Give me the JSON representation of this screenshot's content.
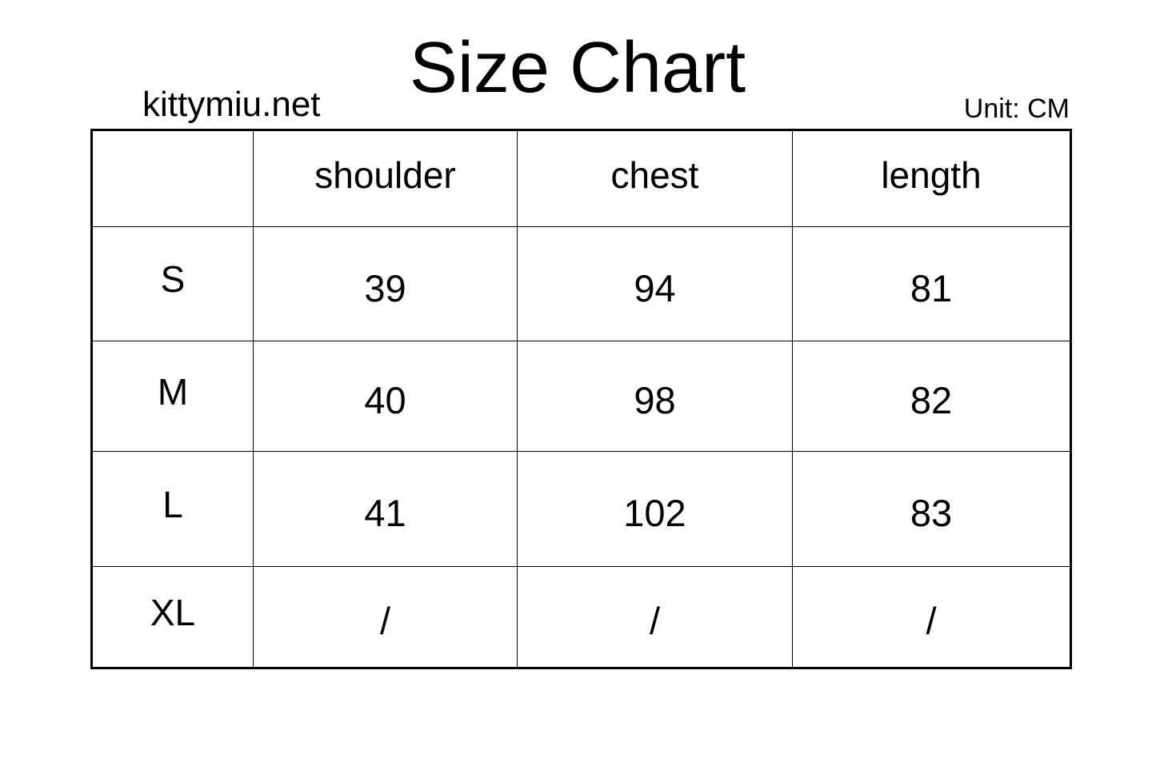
{
  "title": "Size Chart",
  "brand": "kittymiu.net",
  "unit": "Unit: CM",
  "table": {
    "headers": [
      "",
      "shoulder",
      "chest",
      "length"
    ],
    "rows": [
      {
        "size": "S",
        "values": [
          "39",
          "94",
          "81"
        ]
      },
      {
        "size": "M",
        "values": [
          "40",
          "98",
          "82"
        ]
      },
      {
        "size": "L",
        "values": [
          "41",
          "102",
          "83"
        ]
      },
      {
        "size": "XL",
        "values": [
          "/",
          "/",
          "/"
        ]
      }
    ]
  }
}
